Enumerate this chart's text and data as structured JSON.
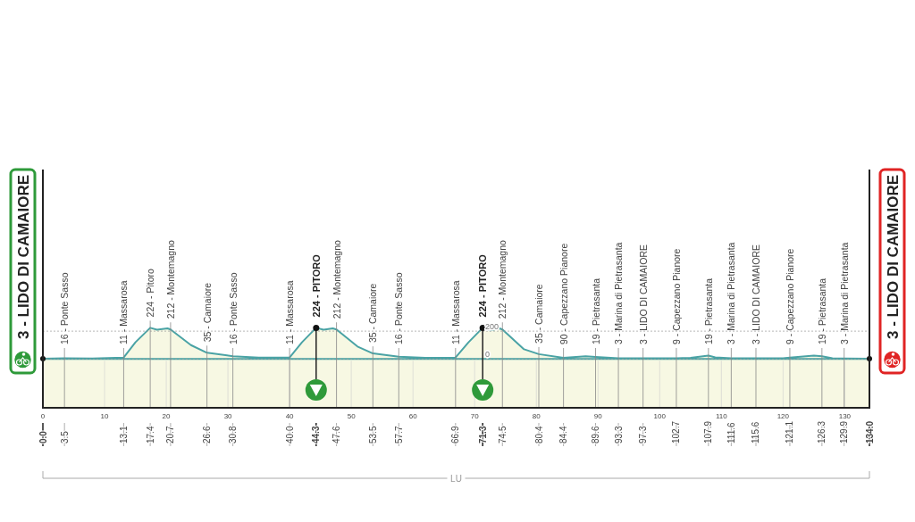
{
  "chart_data": {
    "type": "area",
    "x": [
      0,
      3.5,
      8,
      13.1,
      15,
      17.4,
      18.5,
      20.2,
      20.7,
      24,
      26.6,
      30.8,
      35,
      40,
      42,
      44.3,
      45.5,
      47,
      47.6,
      51,
      53.5,
      57.7,
      62,
      66.9,
      69,
      71.3,
      72.5,
      74,
      74.5,
      78,
      80.4,
      84.4,
      88,
      89.6,
      93.3,
      97.3,
      100,
      102.7,
      105,
      107.9,
      109,
      111.6,
      115.6,
      120,
      121.1,
      125,
      126.3,
      128,
      129.9,
      134
    ],
    "series": [
      {
        "color": "#4aa3a5",
        "values": [
          3,
          5,
          4,
          11,
          120,
          224,
          210,
          220,
          212,
          100,
          45,
          20,
          10,
          11,
          120,
          224,
          210,
          220,
          212,
          90,
          40,
          16,
          8,
          11,
          120,
          224,
          205,
          220,
          212,
          70,
          35,
          8,
          20,
          15,
          5,
          5,
          5,
          6,
          8,
          25,
          12,
          5,
          5,
          5,
          10,
          25,
          20,
          5,
          4,
          3
        ]
      }
    ],
    "xlim": [
      0,
      134
    ],
    "xticks": [
      0,
      10,
      20,
      30,
      40,
      50,
      60,
      70,
      80,
      90,
      100,
      110,
      120,
      130
    ],
    "x2lim": [
      0,
      134
    ],
    "x2ticks": [
      {
        "value": 0,
        "label": "0.0"
      },
      3.5,
      13.1,
      17.4,
      20.7,
      26.6,
      30.8,
      {
        "value": 40,
        "label": "40.0"
      },
      44.3,
      47.6,
      53.5,
      57.7,
      66.9,
      71.3,
      74.5,
      80.4,
      84.4,
      89.6,
      93.3,
      97.3,
      102.7,
      107.9,
      111.6,
      115.6,
      121.1,
      126.3,
      129.9,
      {
        "value": 134,
        "label": "134.0"
      }
    ],
    "ylim": [
      -350,
      1360
    ],
    "yticks": [
      0,
      200
    ],
    "grid": "y",
    "ref_lines": [
      {
        "axis": "x",
        "value": 44.3,
        "label": "224 - PITORO"
      },
      {
        "axis": "x",
        "value": 71.3,
        "label": "224 - PITORO"
      }
    ],
    "annotations": [
      {
        "text": "3 - LIDO DI CAMAIORE",
        "x": 0,
        "y": 3
      },
      {
        "text": "16 - Ponte Sasso",
        "x": 3.5,
        "y": 5
      },
      {
        "text": "11 - Massarosa",
        "x": 13.1,
        "y": 11
      },
      {
        "text": "224 - Pitoro",
        "x": 17.4,
        "y": 224
      },
      {
        "text": "212 - Montemagno",
        "x": 20.7,
        "y": 212
      },
      {
        "text": "35 - Camaiore",
        "x": 26.6,
        "y": 45
      },
      {
        "text": "16 - Ponte Sasso",
        "x": 30.8,
        "y": 20
      },
      {
        "text": "11 - Massarosa",
        "x": 40,
        "y": 11
      },
      {
        "text": "212 - Montemagno",
        "x": 47.6,
        "y": 212
      },
      {
        "text": "35 - Camaiore",
        "x": 53.5,
        "y": 40
      },
      {
        "text": "16 - Ponte Sasso",
        "x": 57.7,
        "y": 16
      },
      {
        "text": "11 - Massarosa",
        "x": 66.9,
        "y": 11
      },
      {
        "text": "212 - Montemagno",
        "x": 74.5,
        "y": 212
      },
      {
        "text": "35 - Camaiore",
        "x": 80.4,
        "y": 35
      },
      {
        "text": "90 - Capezzano Pianore",
        "x": 84.4,
        "y": 8
      },
      {
        "text": "19 - Pietrasanta",
        "x": 89.6,
        "y": 15
      },
      {
        "text": "3 - Marina di Pietrasanta",
        "x": 93.3,
        "y": 5
      },
      {
        "text": "3 - LIDO DI CAMAIORE",
        "x": 97.3,
        "y": 5
      },
      {
        "text": "9 - Capezzano Pianore",
        "x": 102.7,
        "y": 6
      },
      {
        "text": "19 - Pietrasanta",
        "x": 107.9,
        "y": 25
      },
      {
        "text": "3 - Marina di Pietrasanta",
        "x": 111.6,
        "y": 5
      },
      {
        "text": "3 - LIDO DI CAMAIORE",
        "x": 115.6,
        "y": 5
      },
      {
        "text": "9 - Capezzano Pianore",
        "x": 121.1,
        "y": 10
      },
      {
        "text": "19 - Pietrasanta",
        "x": 126.3,
        "y": 20
      },
      {
        "text": "3 - Marina di Pietrasanta",
        "x": 129.9,
        "y": 4
      },
      {
        "text": "3 - LIDO DI CAMAIORE",
        "x": 134,
        "y": 3
      },
      "LU"
    ]
  }
}
